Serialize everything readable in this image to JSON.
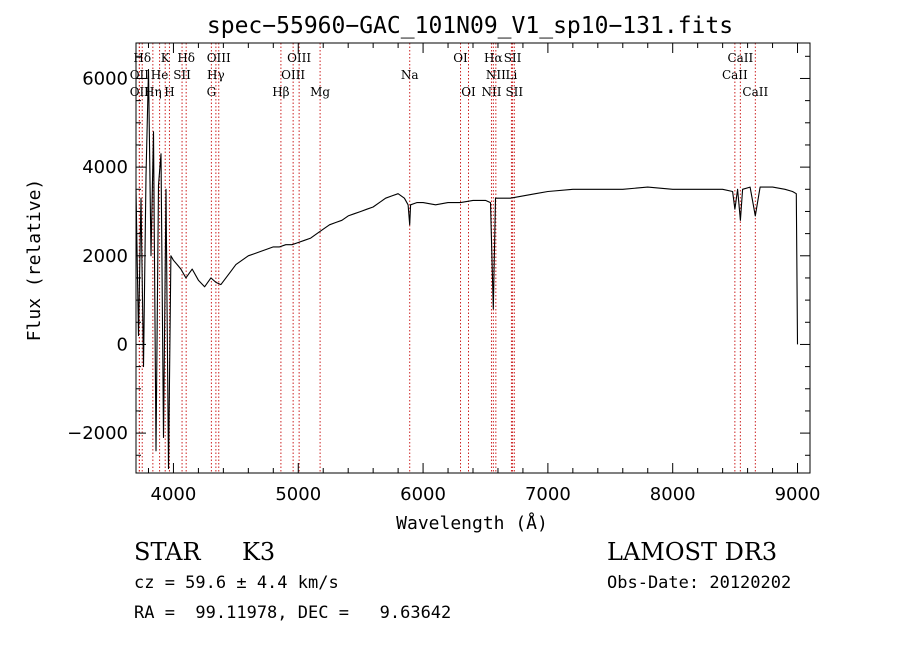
{
  "chart_data": {
    "type": "line",
    "title": "spec−55960−GAC_101N09_V1_sp10−131.fits",
    "xlabel": "Wavelength (Å)",
    "ylabel": "Flux (relative)",
    "xlim": [
      3700,
      9100
    ],
    "ylim": [
      -2900,
      6800
    ],
    "x_ticks": [
      4000,
      5000,
      6000,
      7000,
      8000,
      9000
    ],
    "x_tick_labels": [
      "4000",
      "5000",
      "6000",
      "7000",
      "8000",
      "9000"
    ],
    "y_ticks": [
      -2000,
      0,
      2000,
      4000,
      6000
    ],
    "y_tick_labels": [
      "−2000",
      "0",
      "2000",
      "4000",
      "6000"
    ],
    "grid": false,
    "series": [
      {
        "name": "spectrum",
        "x": [
          3700,
          3720,
          3740,
          3760,
          3780,
          3800,
          3820,
          3840,
          3860,
          3880,
          3900,
          3920,
          3940,
          3960,
          3980,
          4000,
          4030,
          4060,
          4100,
          4150,
          4200,
          4250,
          4300,
          4340,
          4380,
          4420,
          4460,
          4500,
          4550,
          4600,
          4650,
          4700,
          4750,
          4800,
          4850,
          4900,
          4950,
          5000,
          5050,
          5100,
          5150,
          5200,
          5250,
          5300,
          5350,
          5400,
          5450,
          5500,
          5550,
          5600,
          5650,
          5700,
          5750,
          5800,
          5850,
          5880,
          5893,
          5900,
          5950,
          6000,
          6100,
          6200,
          6300,
          6400,
          6500,
          6540,
          6563,
          6580,
          6620,
          6700,
          6800,
          6900,
          7000,
          7200,
          7400,
          7600,
          7800,
          8000,
          8200,
          8400,
          8480,
          8498,
          8520,
          8542,
          8560,
          8620,
          8662,
          8700,
          8800,
          8900,
          8960,
          8990,
          9000
        ],
        "y": [
          3500,
          200,
          3300,
          -500,
          3800,
          6200,
          2000,
          4800,
          -2400,
          3600,
          4300,
          -2100,
          3500,
          -2800,
          2000,
          1900,
          1800,
          1700,
          1500,
          1700,
          1450,
          1300,
          1500,
          1400,
          1350,
          1500,
          1650,
          1800,
          1900,
          2000,
          2050,
          2100,
          2150,
          2200,
          2200,
          2250,
          2250,
          2300,
          2350,
          2400,
          2500,
          2600,
          2700,
          2750,
          2800,
          2900,
          2950,
          3000,
          3050,
          3100,
          3200,
          3300,
          3350,
          3400,
          3300,
          3150,
          2700,
          3150,
          3200,
          3200,
          3150,
          3200,
          3200,
          3250,
          3250,
          3200,
          800,
          3300,
          3300,
          3300,
          3350,
          3400,
          3450,
          3500,
          3500,
          3500,
          3550,
          3500,
          3500,
          3500,
          3450,
          3050,
          3500,
          2800,
          3500,
          3550,
          2900,
          3550,
          3550,
          3500,
          3450,
          3400,
          0
        ]
      }
    ],
    "lines": [
      {
        "label": "Hδ",
        "x": 3750,
        "row": 1
      },
      {
        "label": "OII",
        "x": 3727,
        "row": 2
      },
      {
        "label": "OII",
        "x": 3727,
        "row": 3
      },
      {
        "label": "K",
        "x": 3934,
        "row": 1
      },
      {
        "label": "He",
        "x": 3889,
        "row": 2
      },
      {
        "label": "Hη",
        "x": 3835,
        "row": 3
      },
      {
        "label": "SII",
        "x": 4069,
        "row": 2
      },
      {
        "label": "H",
        "x": 3968,
        "row": 3
      },
      {
        "label": "Hδ",
        "x": 4102,
        "row": 1
      },
      {
        "label": "OIII",
        "x": 4363,
        "row": 1
      },
      {
        "label": "Hγ",
        "x": 4340,
        "row": 2
      },
      {
        "label": "G",
        "x": 4304,
        "row": 3
      },
      {
        "label": "Hβ",
        "x": 4861,
        "row": 3
      },
      {
        "label": "OIII",
        "x": 5007,
        "row": 1
      },
      {
        "label": "OIII",
        "x": 4959,
        "row": 2
      },
      {
        "label": "Mg",
        "x": 5175,
        "row": 3
      },
      {
        "label": "Na",
        "x": 5893,
        "row": 2
      },
      {
        "label": "OI",
        "x": 6300,
        "row": 1
      },
      {
        "label": "OI",
        "x": 6364,
        "row": 3
      },
      {
        "label": "Hα",
        "x": 6563,
        "row": 1
      },
      {
        "label": "NII",
        "x": 6583,
        "row": 2
      },
      {
        "label": "NII",
        "x": 6548,
        "row": 3
      },
      {
        "label": "SII",
        "x": 6717,
        "row": 1
      },
      {
        "label": "Li",
        "x": 6708,
        "row": 2
      },
      {
        "label": "SII",
        "x": 6731,
        "row": 3
      },
      {
        "label": "CaII",
        "x": 8542,
        "row": 1
      },
      {
        "label": "CaII",
        "x": 8498,
        "row": 2
      },
      {
        "label": "CaII",
        "x": 8662,
        "row": 3
      }
    ]
  },
  "info": {
    "class": "STAR",
    "subclass": "K3",
    "redshift": "cz = 59.6 ± 4.4 km/s",
    "coords": "RA =  99.11978, DEC =   9.63642",
    "survey": "LAMOST DR3",
    "obs_date": "Obs-Date: 20120202"
  }
}
